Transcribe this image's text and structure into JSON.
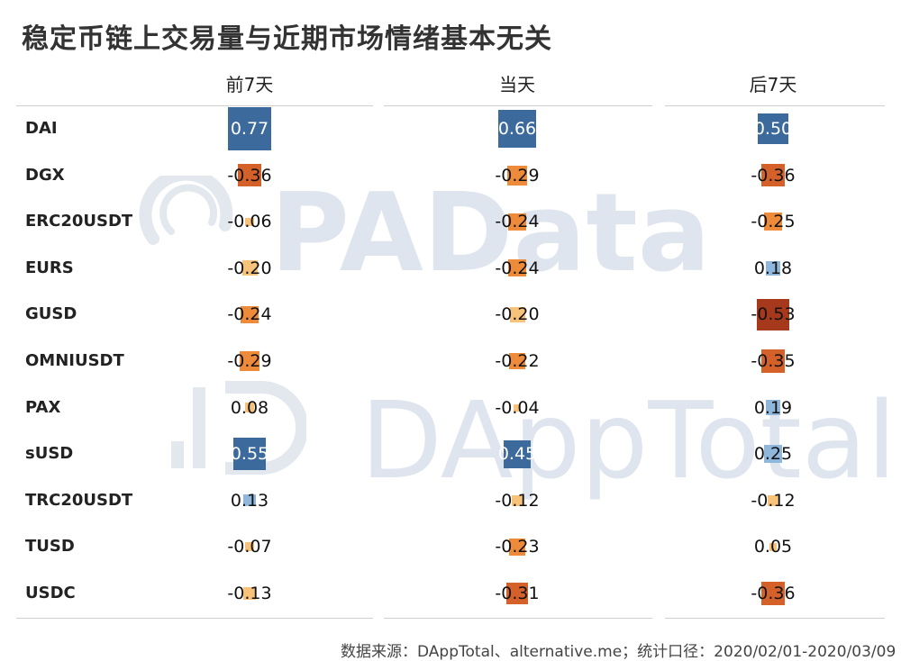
{
  "title": "稳定币链上交易量与近期市场情绪基本无关",
  "source": "数据来源：DAppTotal、alternative.me；统计口径：2020/02/01-2020/03/09",
  "watermarks": {
    "line1": "PAData",
    "line2": "DAppTotal",
    "logo1": "padata-logo-icon",
    "logo2": "dapptotal-logo-icon"
  },
  "colors": {
    "blue_dark": "#3d6a9c",
    "blue_light": "#8fb7dc",
    "orange_light": "#f7c27a",
    "orange": "#ee8b3a",
    "orange_dark": "#d4612a",
    "brown": "#a6391c"
  },
  "chart_data": {
    "type": "heatmap",
    "title": "稳定币链上交易量与近期市场情绪基本无关",
    "columns": [
      "前7天",
      "当天",
      "后7天"
    ],
    "rows": [
      "DAI",
      "DGX",
      "ERC20USDT",
      "EURS",
      "GUSD",
      "OMNIUSDT",
      "PAX",
      "sUSD",
      "TRC20USDT",
      "TUSD",
      "USDC"
    ],
    "values": [
      [
        0.77,
        0.66,
        0.5
      ],
      [
        -0.36,
        -0.29,
        -0.36
      ],
      [
        -0.06,
        -0.24,
        -0.25
      ],
      [
        -0.2,
        -0.24,
        0.18
      ],
      [
        -0.24,
        -0.2,
        -0.53
      ],
      [
        -0.29,
        -0.22,
        -0.35
      ],
      [
        0.08,
        -0.04,
        0.19
      ],
      [
        0.55,
        0.45,
        0.25
      ],
      [
        0.13,
        -0.12,
        -0.12
      ],
      [
        -0.07,
        -0.23,
        0.05
      ],
      [
        -0.13,
        -0.31,
        -0.36
      ]
    ],
    "labels": [
      [
        "0.77",
        "0.66",
        "0.50"
      ],
      [
        "-0.36",
        "-0.29",
        "-0.36"
      ],
      [
        "-0.06",
        "-0.24",
        "-0.25"
      ],
      [
        "-0.20",
        "-0.24",
        "0.18"
      ],
      [
        "-0.24",
        "-0.20",
        "-0.53"
      ],
      [
        "-0.29",
        "-0.22",
        "-0.35"
      ],
      [
        "0.08",
        "-0.04",
        "0.19"
      ],
      [
        "0.55",
        "0.45",
        "0.25"
      ],
      [
        "0.13",
        "-0.12",
        "-0.12"
      ],
      [
        "-0.07",
        "-0.23",
        "0.05"
      ],
      [
        "-0.13",
        "-0.31",
        "-0.36"
      ]
    ]
  }
}
